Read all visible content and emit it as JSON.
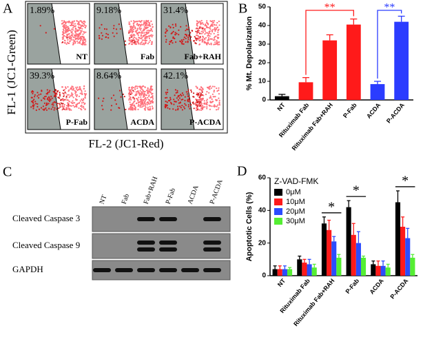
{
  "panel_a": {
    "label": "A",
    "y_label": "FL-1 (JC1-Green)",
    "x_label": "FL-2 (JC1-Red)",
    "plots": [
      {
        "percent": "1.89%",
        "name": "NT"
      },
      {
        "percent": "9.18%",
        "name": "Fab"
      },
      {
        "percent": "31.4%",
        "name": "Fab+RAH"
      },
      {
        "percent": "39.3%",
        "name": "P-Fab"
      },
      {
        "percent": "8.64%",
        "name": "ACDA"
      },
      {
        "percent": "42.1%",
        "name": "P-ACDA"
      }
    ]
  },
  "panel_c": {
    "label": "C",
    "lanes": [
      "NT",
      "Fab",
      "Fab+RAH",
      "P-Fab",
      "ACDA",
      "P-ACDA"
    ],
    "rows": [
      "Cleaved Caspase 3",
      "Cleaved Caspase 9",
      "GAPDH"
    ]
  },
  "chart_data": [
    {
      "type": "bar",
      "panel": "B",
      "y_label": "% Mt. Depolarization",
      "categories": [
        "NT",
        "Rituximab Fab",
        "Rituximab Fab+RAH",
        "P-Fab",
        "ACDA",
        "P-ACDA"
      ],
      "values": [
        2,
        9.5,
        32,
        40.5,
        8.5,
        42
      ],
      "errors": [
        1,
        2.5,
        3,
        3,
        1.5,
        3
      ],
      "colors": [
        "#000000",
        "#ff1a1a",
        "#ff1a1a",
        "#ff1a1a",
        "#2b3cff",
        "#2b3cff"
      ],
      "ylim": [
        0,
        50
      ],
      "yticks": [
        0,
        10,
        20,
        30,
        40,
        50
      ],
      "annotations": [
        {
          "text": "**",
          "color": "#ff1a1a"
        },
        {
          "text": "**",
          "color": "#2b3cff"
        }
      ]
    },
    {
      "type": "grouped_bar",
      "panel": "D",
      "y_label": "Apoptotic Cells (%)",
      "legend_title": "Z-VAD-FMK",
      "legend": "upper left",
      "categories": [
        "NT",
        "Rituximab Fab",
        "Rituximab Fab+RAH",
        "P-Fab",
        "ACDA",
        "P-ACDA"
      ],
      "series": [
        {
          "name": "0μM",
          "color": "#000000",
          "values": [
            4,
            10,
            32,
            42,
            7,
            45
          ],
          "errors": [
            2,
            2,
            4,
            4,
            2,
            7
          ]
        },
        {
          "name": "10μM",
          "color": "#ff1a1a",
          "values": [
            4,
            8,
            28,
            25,
            6,
            30
          ],
          "errors": [
            2,
            2,
            6,
            7,
            3,
            6
          ]
        },
        {
          "name": "20μM",
          "color": "#2b4cff",
          "values": [
            4,
            7,
            21,
            20,
            6,
            23
          ],
          "errors": [
            2,
            3,
            3,
            7,
            3,
            6
          ]
        },
        {
          "name": "30μM",
          "color": "#55ee33",
          "values": [
            4,
            5,
            11,
            11,
            5,
            11
          ],
          "errors": [
            1,
            2,
            2,
            1,
            2,
            2
          ]
        }
      ],
      "ylim": [
        0,
        60
      ],
      "yticks": [
        0,
        20,
        40,
        60
      ],
      "annotations": [
        {
          "text": "*"
        },
        {
          "text": "*"
        },
        {
          "text": "*"
        }
      ]
    }
  ]
}
